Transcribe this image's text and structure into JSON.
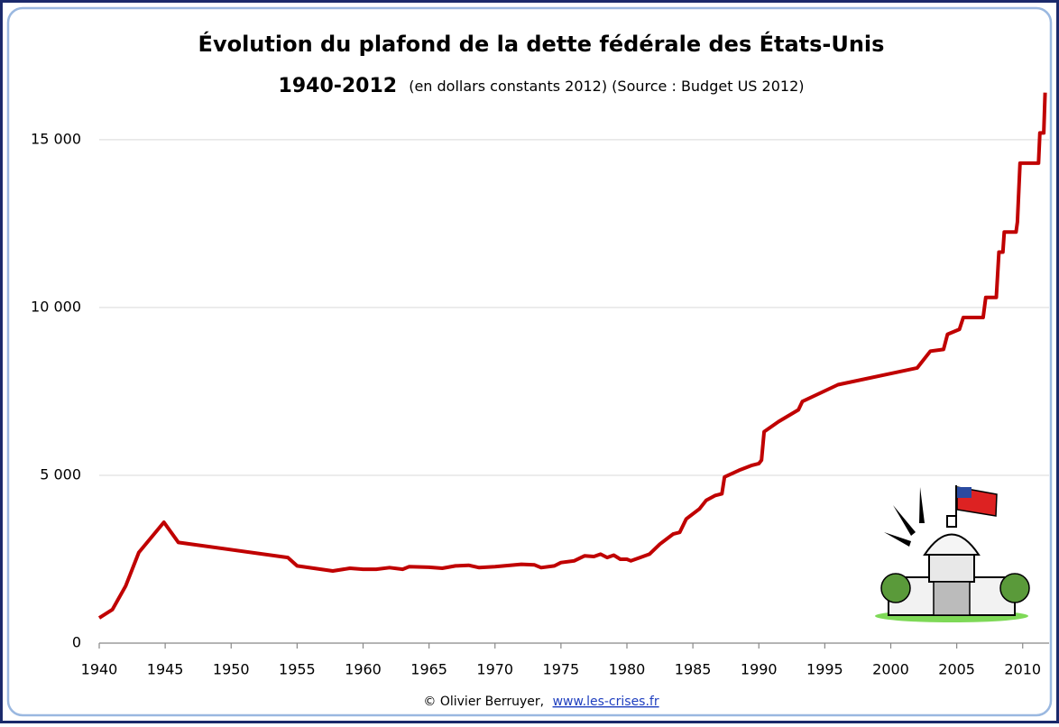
{
  "chart_data": {
    "type": "line",
    "title": "Évolution du plafond de la dette fédérale des États-Unis",
    "subtitle": "1940-2012",
    "subtitle_note": "(en dollars constants 2012) (Source : Budget US 2012)",
    "credit": "© Olivier Berruyer,",
    "credit_link": "www.les-crises.fr",
    "color": "#c00000",
    "grid": true,
    "xlim": [
      1940,
      2012
    ],
    "ylim": [
      0,
      16500
    ],
    "xticks": [
      1940,
      1945,
      1950,
      1955,
      1960,
      1965,
      1970,
      1975,
      1980,
      1985,
      1990,
      1995,
      2000,
      2005,
      2010
    ],
    "yticks": [
      0,
      {
        "value": 5000,
        "label": "5 000"
      },
      {
        "value": 10000,
        "label": "10 000"
      },
      {
        "value": 15000,
        "label": "15 000"
      }
    ],
    "x": [
      1940,
      1941,
      1942,
      1943,
      1944.9,
      1946,
      1954.3,
      1955,
      1957.7,
      1959,
      1960,
      1961,
      1962,
      1963,
      1963.5,
      1965,
      1966,
      1967,
      1968,
      1968.8,
      1970,
      1972,
      1973,
      1973.5,
      1974.5,
      1975,
      1976,
      1976.8,
      1977.5,
      1978,
      1978.5,
      1979,
      1979.5,
      1980,
      1980.3,
      1981,
      1981.7,
      1982.5,
      1983.5,
      1984,
      1984.5,
      1985.5,
      1986,
      1986.7,
      1987.2,
      1987.4,
      1988.5,
      1989.5,
      1990,
      1990.2,
      1990.4,
      1991.5,
      1993,
      1993.3,
      1996,
      2002,
      2003,
      2004,
      2004.3,
      2005.2,
      2005.5,
      2007,
      2007.2,
      2008,
      2008.2,
      2008.5,
      2008.6,
      2009.5,
      2009.6,
      2009.8,
      2011.2,
      2011.3,
      2011.6,
      2011.7
    ],
    "values": [
      750,
      1000,
      1700,
      2700,
      3600,
      3000,
      2550,
      2300,
      2150,
      2230,
      2200,
      2200,
      2250,
      2200,
      2280,
      2260,
      2230,
      2300,
      2320,
      2250,
      2280,
      2350,
      2330,
      2250,
      2300,
      2400,
      2450,
      2600,
      2580,
      2650,
      2550,
      2620,
      2500,
      2500,
      2450,
      2550,
      2650,
      2950,
      3250,
      3300,
      3700,
      4000,
      4250,
      4400,
      4450,
      4950,
      5150,
      5300,
      5350,
      5450,
      6300,
      6600,
      6950,
      7200,
      7700,
      8200,
      8700,
      8750,
      9200,
      9350,
      9700,
      9700,
      10300,
      10300,
      11650,
      11650,
      12250,
      12250,
      12550,
      14300,
      14300,
      15200,
      15200,
      16400
    ]
  }
}
